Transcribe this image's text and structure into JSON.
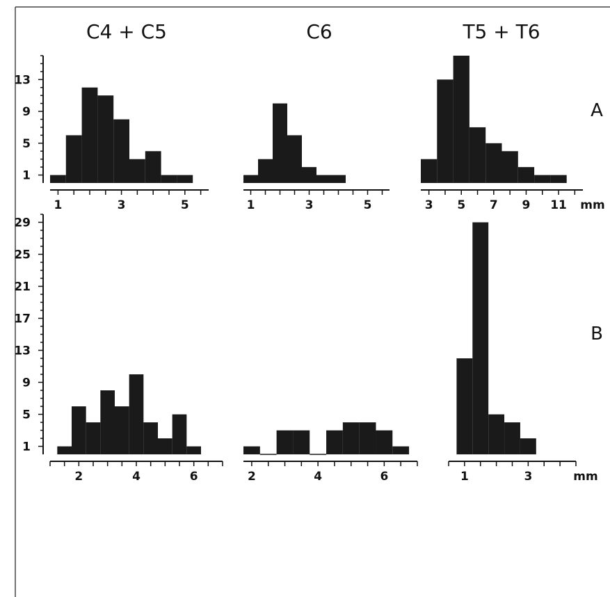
{
  "column_titles": [
    "C4 + C5",
    "C6",
    "T5 + T6"
  ],
  "row_labels": [
    "A",
    "B"
  ],
  "unit": "mm",
  "colors": {
    "bar": "#1a1a1a",
    "axis": "#111111",
    "frame": "#444444",
    "background": "#ffffff"
  },
  "row_y_ticks": [
    {
      "min": 0,
      "max": 16,
      "labels": [
        "1",
        "5",
        "9",
        "13"
      ]
    },
    {
      "min": 0,
      "max": 30,
      "labels": [
        "1",
        "5",
        "9",
        "13",
        "17",
        "21",
        "25",
        "29"
      ]
    }
  ],
  "chart_data": [
    {
      "type": "bar",
      "panel": "A1",
      "title": "C4 + C5",
      "x_ticks": [
        "1",
        "3",
        "5"
      ],
      "xlim": [
        0.75,
        5.75
      ],
      "ylim": [
        0,
        16
      ],
      "bin_width": 0.5,
      "bins": [
        {
          "x": 1.0,
          "y": 1
        },
        {
          "x": 1.5,
          "y": 6
        },
        {
          "x": 2.0,
          "y": 12
        },
        {
          "x": 2.5,
          "y": 11
        },
        {
          "x": 3.0,
          "y": 8
        },
        {
          "x": 3.5,
          "y": 3
        },
        {
          "x": 4.0,
          "y": 4
        },
        {
          "x": 4.5,
          "y": 1
        },
        {
          "x": 5.0,
          "y": 1
        }
      ]
    },
    {
      "type": "bar",
      "panel": "A2",
      "title": "C6",
      "x_ticks": [
        "1",
        "3",
        "5"
      ],
      "xlim": [
        0.75,
        5.75
      ],
      "ylim": [
        0,
        16
      ],
      "bin_width": 0.5,
      "bins": [
        {
          "x": 1.0,
          "y": 1
        },
        {
          "x": 1.5,
          "y": 3
        },
        {
          "x": 2.0,
          "y": 10
        },
        {
          "x": 2.5,
          "y": 6
        },
        {
          "x": 3.0,
          "y": 2
        },
        {
          "x": 3.5,
          "y": 1
        },
        {
          "x": 4.0,
          "y": 1
        }
      ]
    },
    {
      "type": "bar",
      "panel": "A3",
      "title": "T5 + T6",
      "x_ticks": [
        "3",
        "5",
        "7",
        "9",
        "11"
      ],
      "x_unit": "mm",
      "xlim": [
        2.5,
        12.5
      ],
      "ylim": [
        0,
        16
      ],
      "bin_width": 1,
      "bins": [
        {
          "x": 3,
          "y": 3
        },
        {
          "x": 4,
          "y": 13
        },
        {
          "x": 5,
          "y": 16
        },
        {
          "x": 6,
          "y": 7
        },
        {
          "x": 7,
          "y": 5
        },
        {
          "x": 8,
          "y": 4
        },
        {
          "x": 9,
          "y": 2
        },
        {
          "x": 10,
          "y": 1
        },
        {
          "x": 11,
          "y": 1
        }
      ]
    },
    {
      "type": "bar",
      "panel": "B1",
      "title": "",
      "x_ticks": [
        "2",
        "4",
        "6"
      ],
      "xlim": [
        1.0,
        7.0
      ],
      "ylim": [
        0,
        30
      ],
      "bin_width": 0.5,
      "bins": [
        {
          "x": 1.5,
          "y": 1
        },
        {
          "x": 2.0,
          "y": 6
        },
        {
          "x": 2.5,
          "y": 4
        },
        {
          "x": 3.0,
          "y": 8
        },
        {
          "x": 3.5,
          "y": 6
        },
        {
          "x": 4.0,
          "y": 10
        },
        {
          "x": 4.5,
          "y": 4
        },
        {
          "x": 5.0,
          "y": 2
        },
        {
          "x": 5.5,
          "y": 5
        },
        {
          "x": 6.0,
          "y": 1
        }
      ]
    },
    {
      "type": "bar",
      "panel": "B2",
      "title": "",
      "x_ticks": [
        "2",
        "4",
        "6"
      ],
      "xlim": [
        1.75,
        7.0
      ],
      "ylim": [
        0,
        30
      ],
      "bin_width": 0.5,
      "bins": [
        {
          "x": 2.0,
          "y": 1
        },
        {
          "x": 2.5,
          "y": 0
        },
        {
          "x": 3.0,
          "y": 3
        },
        {
          "x": 3.5,
          "y": 3
        },
        {
          "x": 4.0,
          "y": 0
        },
        {
          "x": 4.5,
          "y": 3
        },
        {
          "x": 5.0,
          "y": 4
        },
        {
          "x": 5.5,
          "y": 4
        },
        {
          "x": 6.0,
          "y": 3
        },
        {
          "x": 6.5,
          "y": 1
        }
      ]
    },
    {
      "type": "bar",
      "panel": "B3",
      "title": "",
      "x_ticks": [
        "1",
        "3"
      ],
      "x_unit": "mm",
      "xlim": [
        0.5,
        4.5
      ],
      "ylim": [
        0,
        30
      ],
      "bin_width": 0.5,
      "bins": [
        {
          "x": 1.0,
          "y": 12
        },
        {
          "x": 1.5,
          "y": 29
        },
        {
          "x": 2.0,
          "y": 5
        },
        {
          "x": 2.5,
          "y": 4
        },
        {
          "x": 3.0,
          "y": 2
        }
      ]
    }
  ]
}
